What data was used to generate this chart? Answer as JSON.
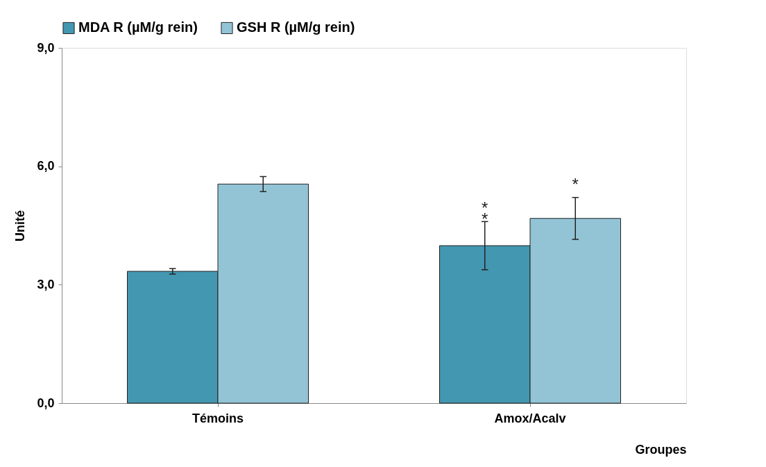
{
  "chart_data": {
    "type": "bar",
    "xlabel": "Groupes",
    "ylabel": "Unité",
    "categories": [
      "Témoins",
      "Amox/Acalv"
    ],
    "series": [
      {
        "name": "MDA R (µM/g rein)",
        "color": "#4397b0",
        "values": [
          3.34,
          3.99
        ],
        "errors": [
          0.07,
          0.61
        ]
      },
      {
        "name": "GSH R (µM/g rein)",
        "color": "#93c4d6",
        "values": [
          5.55,
          4.68
        ],
        "errors": [
          0.19,
          0.53
        ]
      }
    ],
    "ylim": [
      0,
      9
    ],
    "yticks": [
      {
        "value": 0,
        "label": "0,0"
      },
      {
        "value": 3,
        "label": "3,0"
      },
      {
        "value": 6,
        "label": "6,0"
      },
      {
        "value": 9,
        "label": "9,0"
      }
    ],
    "grid": false,
    "legend": "top",
    "annotations": [
      "**",
      "*"
    ]
  }
}
